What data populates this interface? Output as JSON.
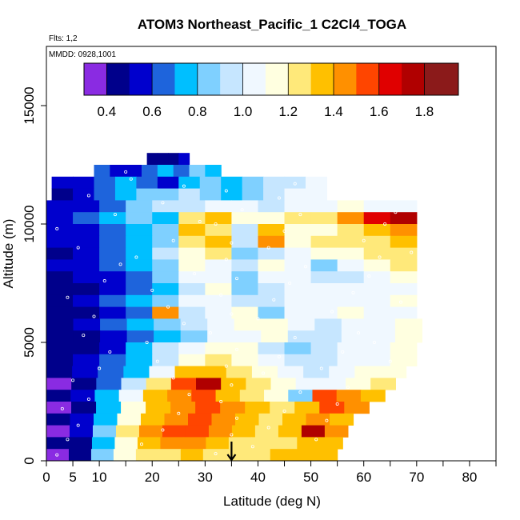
{
  "chart_data": {
    "type": "heatmap",
    "title": "ATOM3 Northeast_Pacific_1 C2Cl4_TOGA",
    "flights_label": "Flts: 1,2",
    "dates_label": "MMDD: 0928,1001",
    "xlabel": "Latitude (deg N)",
    "ylabel": "Altitude (m)",
    "xlim": [
      0,
      85
    ],
    "ylim": [
      0,
      17500
    ],
    "x_ticks": [
      0,
      5,
      10,
      20,
      30,
      40,
      50,
      60,
      70,
      80
    ],
    "x_minor_ticks": [
      15,
      25,
      35,
      45,
      55,
      65,
      75,
      85
    ],
    "y_ticks": [
      0,
      5000,
      10000,
      15000
    ],
    "colorbar": {
      "ticks": [
        0.4,
        0.6,
        0.8,
        1.0,
        1.2,
        1.4,
        1.6,
        1.8
      ],
      "tick_labels": [
        "0.4",
        "0.6",
        "0.8",
        "1.0",
        "1.2",
        "1.4",
        "1.6",
        "1.8"
      ],
      "range": [
        0.3,
        1.95
      ],
      "boundaries": [
        0.3,
        0.4,
        0.5,
        0.6,
        0.7,
        0.8,
        0.9,
        1.0,
        1.1,
        1.2,
        1.3,
        1.4,
        1.5,
        1.6,
        1.7,
        1.8,
        1.95
      ],
      "colors": [
        "#8a2be2",
        "#00008b",
        "#0000cd",
        "#1e64dc",
        "#00bfff",
        "#7fd0ff",
        "#c6e6ff",
        "#f0f8ff",
        "#ffffe0",
        "#ffe97a",
        "#ffc000",
        "#ff9000",
        "#ff4500",
        "#e00000",
        "#b00000",
        "#8b1a1a"
      ]
    },
    "marker_latitude": 35,
    "altitude_bands": [
      {
        "alt": 12750,
        "x0": 19,
        "x1": 27,
        "values": [
          0.45,
          0.4,
          0.45,
          0.5
        ]
      },
      {
        "alt": 12250,
        "x0": 9,
        "x1": 33,
        "values": [
          0.6,
          0.55,
          0.5,
          0.6,
          0.7,
          0.65,
          0.8,
          0.75
        ]
      },
      {
        "alt": 11750,
        "x0": 1,
        "x1": 53,
        "values": [
          0.55,
          0.5,
          0.6,
          0.7,
          0.6,
          0.55,
          0.7,
          0.8,
          0.75,
          0.85,
          0.9,
          0.95,
          1.0
        ]
      },
      {
        "alt": 11250,
        "x0": 1,
        "x1": 53,
        "values": [
          0.45,
          0.5,
          0.6,
          0.7,
          0.8,
          0.85,
          0.9,
          0.8,
          0.75,
          0.85,
          0.95,
          1.0,
          1.05
        ]
      },
      {
        "alt": 10750,
        "x0": 0,
        "x1": 70,
        "values": [
          0.5,
          0.55,
          0.65,
          0.8,
          0.9,
          0.95,
          1.05,
          1.0,
          0.95,
          1.0,
          1.05,
          1.1,
          1.05,
          1.0
        ]
      },
      {
        "alt": 10250,
        "x0": 0,
        "x1": 70,
        "values": [
          0.55,
          0.6,
          0.7,
          0.8,
          0.75,
          1.25,
          1.35,
          1.1,
          1.15,
          1.2,
          1.25,
          1.45,
          1.65,
          1.75
        ]
      },
      {
        "alt": 9750,
        "x0": 0,
        "x1": 70,
        "values": [
          0.5,
          0.55,
          0.65,
          0.7,
          0.8,
          1.3,
          1.2,
          0.9,
          1.3,
          1.1,
          1.15,
          1.25,
          1.35,
          1.45
        ]
      },
      {
        "alt": 9250,
        "x0": 0,
        "x1": 70,
        "values": [
          0.5,
          0.55,
          0.6,
          0.7,
          0.85,
          1.2,
          1.3,
          0.95,
          1.4,
          1.1,
          1.2,
          1.2,
          1.25,
          1.3
        ]
      },
      {
        "alt": 8750,
        "x0": 0,
        "x1": 70,
        "values": [
          0.45,
          0.5,
          0.6,
          0.7,
          0.9,
          1.1,
          1.25,
          0.8,
          0.9,
          1.05,
          1.1,
          1.15,
          1.2,
          1.25
        ]
      },
      {
        "alt": 8250,
        "x0": 0,
        "x1": 70,
        "values": [
          0.5,
          0.55,
          0.6,
          0.75,
          0.85,
          1.15,
          1.0,
          0.9,
          1.1,
          1.0,
          0.85,
          1.0,
          1.1,
          1.2
        ]
      },
      {
        "alt": 7750,
        "x0": 0,
        "x1": 70,
        "values": [
          0.45,
          0.5,
          0.55,
          0.65,
          0.8,
          1.0,
          1.05,
          0.85,
          1.0,
          1.05,
          0.95,
          0.95,
          1.05,
          1.1
        ]
      },
      {
        "alt": 7250,
        "x0": 0,
        "x1": 70,
        "values": [
          0.4,
          0.45,
          0.5,
          0.6,
          0.7,
          0.9,
          1.1,
          0.8,
          0.95,
          1.0,
          1.0,
          1.05,
          1.0,
          1.05
        ]
      },
      {
        "alt": 6750,
        "x0": 0,
        "x1": 70,
        "values": [
          0.45,
          0.5,
          0.6,
          0.75,
          0.85,
          1.0,
          1.05,
          0.95,
          0.9,
          1.05,
          1.0,
          1.0,
          1.05,
          1.1
        ]
      },
      {
        "alt": 6250,
        "x0": 0,
        "x1": 70,
        "values": [
          0.4,
          0.45,
          0.55,
          0.65,
          1.4,
          0.95,
          1.0,
          1.1,
          0.85,
          1.0,
          1.05,
          1.1,
          1.05,
          1.05
        ]
      },
      {
        "alt": 5750,
        "x0": 0,
        "x1": 71,
        "values": [
          0.45,
          0.5,
          0.6,
          0.7,
          0.8,
          0.9,
          1.05,
          1.1,
          1.15,
          1.0,
          0.95,
          1.0,
          1.05,
          1.1
        ]
      },
      {
        "alt": 5250,
        "x0": 0,
        "x1": 71,
        "values": [
          0.4,
          0.45,
          0.5,
          0.6,
          0.75,
          0.85,
          1.0,
          1.05,
          1.1,
          0.9,
          0.95,
          1.0,
          1.05,
          1.1
        ]
      },
      {
        "alt": 4750,
        "x0": 0,
        "x1": 70,
        "values": [
          0.4,
          0.45,
          0.55,
          0.7,
          0.9,
          1.0,
          1.1,
          1.1,
          0.95,
          0.85,
          0.95,
          1.0,
          1.05,
          1.1
        ]
      },
      {
        "alt": 4250,
        "x0": 0,
        "x1": 70,
        "values": [
          0.45,
          0.5,
          0.6,
          0.75,
          0.95,
          1.15,
          1.25,
          1.15,
          1.05,
          0.95,
          0.9,
          1.0,
          1.05,
          1.1
        ]
      },
      {
        "alt": 3750,
        "x0": 0,
        "x1": 68,
        "values": [
          0.4,
          0.5,
          0.6,
          0.75,
          1.0,
          1.3,
          1.3,
          1.2,
          1.1,
          1.0,
          0.95,
          1.05,
          1.1,
          1.15
        ]
      },
      {
        "alt": 3250,
        "x0": 0,
        "x1": 66,
        "values": [
          0.35,
          0.45,
          0.6,
          0.9,
          1.2,
          1.5,
          1.75,
          1.3,
          1.2,
          1.1,
          1.0,
          1.05,
          1.15,
          1.2
        ]
      },
      {
        "alt": 2750,
        "x0": 0,
        "x1": 64,
        "values": [
          0.4,
          0.5,
          0.7,
          1.0,
          1.3,
          1.4,
          1.55,
          1.35,
          1.25,
          1.1,
          0.8,
          1.55,
          1.4,
          1.3
        ]
      },
      {
        "alt": 2250,
        "x0": 0,
        "x1": 61,
        "values": [
          0.35,
          0.45,
          0.7,
          1.1,
          1.3,
          1.45,
          1.5,
          1.45,
          1.3,
          1.2,
          1.3,
          1.5,
          1.45
        ]
      },
      {
        "alt": 1750,
        "x0": 0,
        "x1": 58,
        "values": [
          0.45,
          0.55,
          0.75,
          1.1,
          1.35,
          1.45,
          1.5,
          1.4,
          1.3,
          1.25,
          1.3,
          1.4,
          1.35
        ]
      },
      {
        "alt": 1250,
        "x0": 0,
        "x1": 57,
        "values": [
          0.35,
          0.5,
          0.8,
          1.2,
          1.4,
          1.55,
          1.5,
          1.4,
          1.3,
          1.25,
          1.3,
          1.75,
          1.45
        ]
      },
      {
        "alt": 750,
        "x0": 0,
        "x1": 56,
        "values": [
          0.4,
          0.45,
          0.75,
          1.1,
          1.3,
          1.45,
          1.4,
          1.3,
          1.25,
          1.2,
          1.25,
          1.3,
          1.3
        ]
      },
      {
        "alt": 250,
        "x0": 0,
        "x1": 55,
        "values": [
          0.3,
          0.45,
          0.85,
          1.15,
          1.2,
          1.25,
          1.3,
          1.25,
          1.2,
          1.25,
          1.3,
          1.35,
          1.3
        ]
      }
    ],
    "sample_points": [
      [
        2,
        250
      ],
      [
        4,
        900
      ],
      [
        6,
        1500
      ],
      [
        3,
        2200
      ],
      [
        8,
        2600
      ],
      [
        5,
        3400
      ],
      [
        10,
        3900
      ],
      [
        12,
        4600
      ],
      [
        7,
        5300
      ],
      [
        9,
        6100
      ],
      [
        4,
        6900
      ],
      [
        11,
        7600
      ],
      [
        14,
        8300
      ],
      [
        6,
        9000
      ],
      [
        2,
        9800
      ],
      [
        13,
        10400
      ],
      [
        8,
        11200
      ],
      [
        16,
        11900
      ],
      [
        18,
        700
      ],
      [
        22,
        1300
      ],
      [
        25,
        2000
      ],
      [
        27,
        2800
      ],
      [
        24,
        3500
      ],
      [
        21,
        4200
      ],
      [
        19,
        5000
      ],
      [
        26,
        5800
      ],
      [
        23,
        6500
      ],
      [
        20,
        7200
      ],
      [
        28,
        7900
      ],
      [
        17,
        8600
      ],
      [
        24,
        9300
      ],
      [
        29,
        10100
      ],
      [
        22,
        10900
      ],
      [
        26,
        11600
      ],
      [
        15,
        12200
      ],
      [
        32,
        300
      ],
      [
        35,
        1100
      ],
      [
        36,
        1800
      ],
      [
        33,
        2500
      ],
      [
        35,
        3200
      ],
      [
        34,
        4000
      ],
      [
        36,
        4700
      ],
      [
        31,
        5400
      ],
      [
        35,
        6200
      ],
      [
        33,
        7000
      ],
      [
        36,
        7700
      ],
      [
        34,
        8500
      ],
      [
        35,
        9200
      ],
      [
        32,
        10000
      ],
      [
        37,
        10600
      ],
      [
        34,
        11400
      ],
      [
        39,
        600
      ],
      [
        42,
        1400
      ],
      [
        45,
        2100
      ],
      [
        48,
        2900
      ],
      [
        41,
        3700
      ],
      [
        44,
        4400
      ],
      [
        47,
        5200
      ],
      [
        40,
        6000
      ],
      [
        43,
        6800
      ],
      [
        46,
        7500
      ],
      [
        49,
        8200
      ],
      [
        42,
        9000
      ],
      [
        45,
        9700
      ],
      [
        48,
        10400
      ],
      [
        44,
        11100
      ],
      [
        47,
        11700
      ],
      [
        51,
        900
      ],
      [
        53,
        1700
      ],
      [
        55,
        2400
      ],
      [
        57,
        3100
      ],
      [
        52,
        3900
      ],
      [
        56,
        4600
      ],
      [
        59,
        5400
      ],
      [
        54,
        6300
      ],
      [
        58,
        7100
      ],
      [
        61,
        7800
      ],
      [
        63,
        8600
      ],
      [
        60,
        9300
      ],
      [
        64,
        10000
      ],
      [
        66,
        10500
      ],
      [
        62,
        5000
      ],
      [
        65,
        4200
      ],
      [
        67,
        6700
      ],
      [
        69,
        8800
      ]
    ]
  }
}
